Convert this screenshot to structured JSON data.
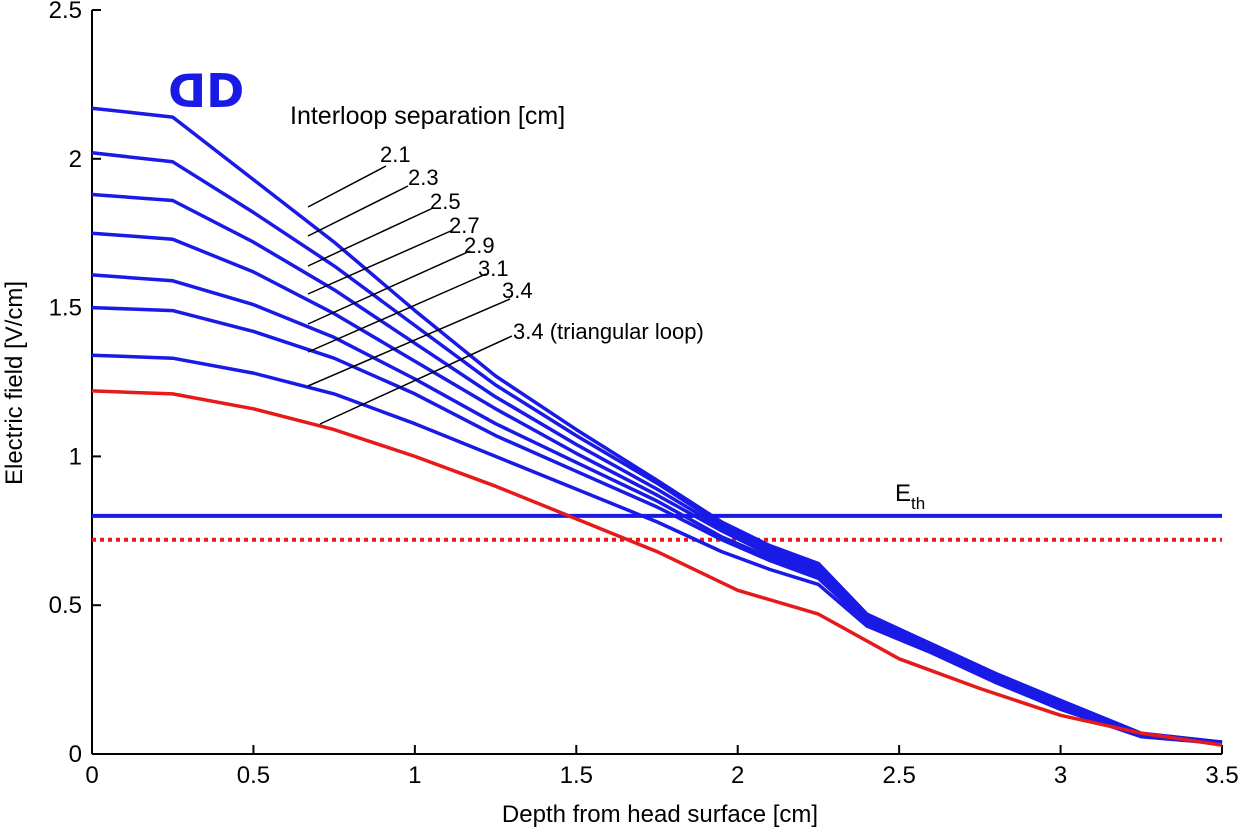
{
  "chart_data": {
    "type": "line",
    "xlabel": "Depth from head surface [cm]",
    "ylabel": "Electric field [V/cm]",
    "xlim": [
      0,
      3.5
    ],
    "ylim": [
      0,
      2.5
    ],
    "xticks": [
      "0",
      "0.5",
      "1",
      "1.5",
      "2",
      "2.5",
      "3",
      "3.5"
    ],
    "yticks": [
      "0",
      "0.5",
      "1",
      "1.5",
      "2",
      "2.5"
    ],
    "grid": false,
    "icon_text": "ᗡD",
    "annotation_title": "Interloop separation [cm]",
    "series": [
      {
        "label": "2.1",
        "color": "#1a1ae6",
        "points": [
          [
            0,
            2.17
          ],
          [
            0.25,
            2.14
          ],
          [
            0.5,
            1.93
          ],
          [
            0.75,
            1.72
          ],
          [
            1.0,
            1.49
          ],
          [
            1.25,
            1.27
          ],
          [
            1.5,
            1.09
          ],
          [
            1.75,
            0.92
          ],
          [
            1.95,
            0.78
          ],
          [
            2.1,
            0.7
          ],
          [
            2.25,
            0.64
          ],
          [
            2.4,
            0.47
          ],
          [
            2.6,
            0.37
          ],
          [
            2.8,
            0.27
          ],
          [
            3.0,
            0.18
          ],
          [
            3.25,
            0.07
          ],
          [
            3.5,
            0.04
          ]
        ]
      },
      {
        "label": "2.3",
        "color": "#1a1ae6",
        "points": [
          [
            0,
            2.02
          ],
          [
            0.25,
            1.99
          ],
          [
            0.5,
            1.82
          ],
          [
            0.75,
            1.64
          ],
          [
            1.0,
            1.44
          ],
          [
            1.25,
            1.24
          ],
          [
            1.5,
            1.07
          ],
          [
            1.75,
            0.91
          ],
          [
            1.95,
            0.77
          ],
          [
            2.1,
            0.69
          ],
          [
            2.25,
            0.63
          ],
          [
            2.4,
            0.46
          ],
          [
            2.6,
            0.365
          ],
          [
            2.8,
            0.265
          ],
          [
            3.0,
            0.175
          ],
          [
            3.25,
            0.068
          ],
          [
            3.5,
            0.04
          ]
        ]
      },
      {
        "label": "2.5",
        "color": "#1a1ae6",
        "points": [
          [
            0,
            1.88
          ],
          [
            0.25,
            1.86
          ],
          [
            0.5,
            1.72
          ],
          [
            0.75,
            1.56
          ],
          [
            1.0,
            1.38
          ],
          [
            1.25,
            1.2
          ],
          [
            1.5,
            1.04
          ],
          [
            1.75,
            0.89
          ],
          [
            1.95,
            0.76
          ],
          [
            2.1,
            0.68
          ],
          [
            2.25,
            0.62
          ],
          [
            2.4,
            0.455
          ],
          [
            2.6,
            0.36
          ],
          [
            2.8,
            0.26
          ],
          [
            3.0,
            0.17
          ],
          [
            3.25,
            0.066
          ],
          [
            3.5,
            0.039
          ]
        ]
      },
      {
        "label": "2.7",
        "color": "#1a1ae6",
        "points": [
          [
            0,
            1.75
          ],
          [
            0.25,
            1.73
          ],
          [
            0.5,
            1.62
          ],
          [
            0.75,
            1.48
          ],
          [
            1.0,
            1.32
          ],
          [
            1.25,
            1.16
          ],
          [
            1.5,
            1.01
          ],
          [
            1.75,
            0.87
          ],
          [
            1.95,
            0.75
          ],
          [
            2.1,
            0.67
          ],
          [
            2.25,
            0.61
          ],
          [
            2.4,
            0.45
          ],
          [
            2.6,
            0.355
          ],
          [
            2.8,
            0.255
          ],
          [
            3.0,
            0.165
          ],
          [
            3.25,
            0.064
          ],
          [
            3.5,
            0.038
          ]
        ]
      },
      {
        "label": "2.9",
        "color": "#1a1ae6",
        "points": [
          [
            0,
            1.61
          ],
          [
            0.25,
            1.59
          ],
          [
            0.5,
            1.51
          ],
          [
            0.75,
            1.4
          ],
          [
            1.0,
            1.26
          ],
          [
            1.25,
            1.11
          ],
          [
            1.5,
            0.98
          ],
          [
            1.75,
            0.85
          ],
          [
            1.95,
            0.73
          ],
          [
            2.1,
            0.66
          ],
          [
            2.25,
            0.6
          ],
          [
            2.4,
            0.445
          ],
          [
            2.6,
            0.35
          ],
          [
            2.8,
            0.25
          ],
          [
            3.0,
            0.16
          ],
          [
            3.25,
            0.062
          ],
          [
            3.5,
            0.037
          ]
        ]
      },
      {
        "label": "3.1",
        "color": "#1a1ae6",
        "points": [
          [
            0,
            1.5
          ],
          [
            0.25,
            1.49
          ],
          [
            0.5,
            1.42
          ],
          [
            0.75,
            1.33
          ],
          [
            1.0,
            1.21
          ],
          [
            1.25,
            1.07
          ],
          [
            1.5,
            0.95
          ],
          [
            1.75,
            0.83
          ],
          [
            1.95,
            0.72
          ],
          [
            2.1,
            0.65
          ],
          [
            2.25,
            0.59
          ],
          [
            2.4,
            0.44
          ],
          [
            2.6,
            0.345
          ],
          [
            2.8,
            0.245
          ],
          [
            3.0,
            0.155
          ],
          [
            3.25,
            0.06
          ],
          [
            3.5,
            0.036
          ]
        ]
      },
      {
        "label": "3.4",
        "color": "#1a1ae6",
        "points": [
          [
            0,
            1.34
          ],
          [
            0.25,
            1.33
          ],
          [
            0.5,
            1.28
          ],
          [
            0.75,
            1.21
          ],
          [
            1.0,
            1.11
          ],
          [
            1.25,
            1.0
          ],
          [
            1.5,
            0.89
          ],
          [
            1.75,
            0.78
          ],
          [
            1.95,
            0.68
          ],
          [
            2.1,
            0.62
          ],
          [
            2.25,
            0.57
          ],
          [
            2.4,
            0.43
          ],
          [
            2.6,
            0.34
          ],
          [
            2.8,
            0.24
          ],
          [
            3.0,
            0.15
          ],
          [
            3.25,
            0.058
          ],
          [
            3.5,
            0.035
          ]
        ]
      },
      {
        "label": "3.4 (triangular loop)",
        "color": "#e61a1a",
        "points": [
          [
            0,
            1.22
          ],
          [
            0.25,
            1.21
          ],
          [
            0.5,
            1.16
          ],
          [
            0.75,
            1.09
          ],
          [
            1.0,
            1.0
          ],
          [
            1.25,
            0.9
          ],
          [
            1.5,
            0.79
          ],
          [
            1.75,
            0.68
          ],
          [
            2.0,
            0.55
          ],
          [
            2.25,
            0.47
          ],
          [
            2.5,
            0.32
          ],
          [
            2.75,
            0.22
          ],
          [
            3.0,
            0.13
          ],
          [
            3.25,
            0.07
          ],
          [
            3.5,
            0.03
          ]
        ]
      }
    ],
    "thresholds": [
      {
        "label": "E",
        "sub": "th",
        "y": 0.8,
        "color": "#1a1ae6",
        "style": "solid"
      },
      {
        "y": 0.72,
        "color": "#e61a1a",
        "style": "dotted"
      }
    ]
  }
}
